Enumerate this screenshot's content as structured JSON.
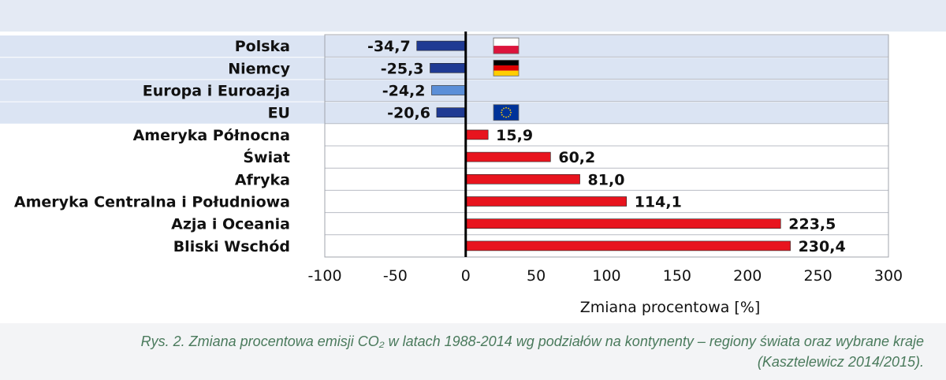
{
  "chart_data": {
    "type": "bar",
    "orientation": "horizontal",
    "categories": [
      "Polska",
      "Niemcy",
      "Europa i Euroazja",
      "EU",
      "Ameryka Północna",
      "Świat",
      "Afryka",
      "Ameryka Centralna i Południowa",
      "Azja i Oceania",
      "Bliski Wschód"
    ],
    "values": [
      -34.7,
      -25.3,
      -24.2,
      -20.6,
      15.9,
      60.2,
      81.0,
      114.1,
      223.5,
      230.4
    ],
    "value_labels": [
      "-34,7",
      "-25,3",
      "-24,2",
      "-20,6",
      "15,9",
      "60,2",
      "81,0",
      "114,1",
      "223,5",
      "230,4"
    ],
    "xticks": [
      "-100",
      "-50",
      "0",
      "50",
      "100",
      "150",
      "200",
      "250",
      "300"
    ],
    "xlim": [
      -100,
      300
    ],
    "xlabel": "Zmiana procentowa [%]",
    "colors": {
      "negative_bar": "#1f3a93",
      "negative_bar_light": "#5b8fd8",
      "positive_bar": "#e8141e",
      "row_highlight": "#dbe4f3",
      "zero_line": "#000000"
    },
    "flags": [
      "poland-flag",
      "germany-flag",
      "",
      "eu-flag",
      "",
      "",
      "",
      "",
      "",
      ""
    ],
    "grid": true
  },
  "caption": {
    "line1": "Rys. 2. Zmiana procentowa emisji CO₂ w latach 1988-2014 wg podziałów na kontynenty – regiony świata oraz wybrane kraje",
    "line2": "(Kasztelewicz 2014/2015)."
  }
}
